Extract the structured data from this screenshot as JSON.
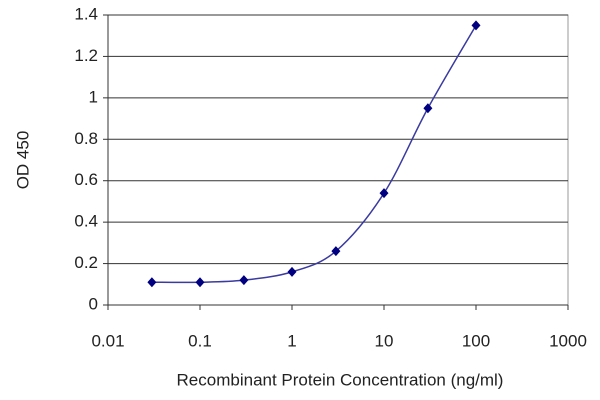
{
  "chart_data": {
    "type": "line",
    "xlabel": "Recombinant Protein Concentration (ng/ml)",
    "ylabel": "OD 450",
    "x": [
      0.03,
      0.1,
      0.3,
      1,
      3,
      10,
      30,
      100
    ],
    "series": [
      {
        "color": "#000080",
        "values": [
          0.11,
          0.11,
          0.12,
          0.16,
          0.26,
          0.54,
          0.95,
          1.35
        ]
      }
    ],
    "xscale": "log",
    "xlim": [
      0.01,
      1000
    ],
    "xticks": [
      0.01,
      0.1,
      1,
      10,
      100,
      1000
    ],
    "ylim": [
      0,
      1.4
    ],
    "yticks": [
      0,
      0.2,
      0.4,
      0.6,
      0.8,
      1,
      1.2,
      1.4
    ],
    "grid": true
  }
}
